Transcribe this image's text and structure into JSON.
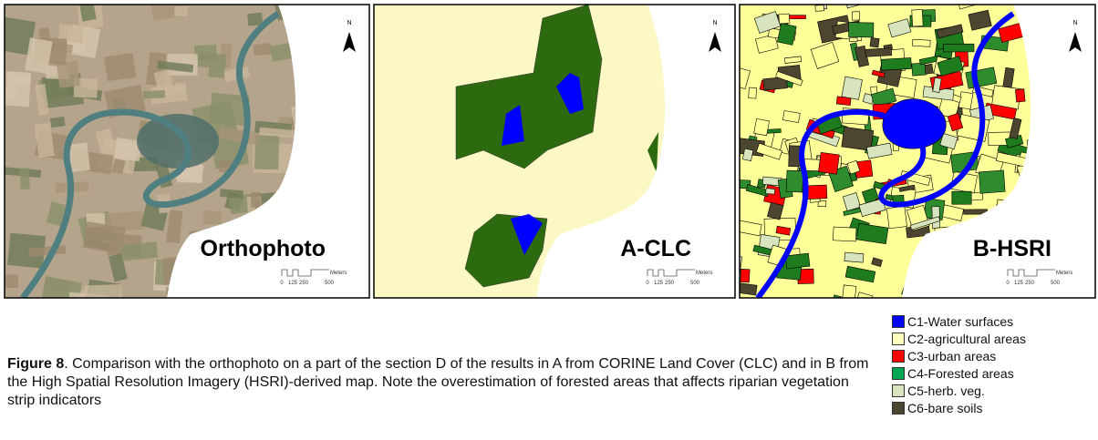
{
  "panels": [
    {
      "label": "Orthophoto",
      "north": "N",
      "scale_ticks": [
        "0",
        "125",
        "250",
        "500"
      ],
      "scale_unit": "Meters"
    },
    {
      "label": "A-CLC",
      "north": "N",
      "scale_ticks": [
        "0",
        "125",
        "250",
        "500"
      ],
      "scale_unit": "Meters"
    },
    {
      "label": "B-HSRI",
      "north": "N",
      "scale_ticks": [
        "0",
        "125",
        "250",
        "500"
      ],
      "scale_unit": "Meters"
    }
  ],
  "caption": {
    "figure": "Figure 8",
    "text": ". Comparison with the orthophoto on a part of the section D of the results in A from CORINE Land Cover (CLC) and in B from the High Spatial Resolution Imagery (HSRI)-derived map. Note the overestimation of forested areas that affects riparian vegetation strip indicators"
  },
  "legend": [
    {
      "label": "C1-Water surfaces",
      "color": "#0000ff"
    },
    {
      "label": "C2-agricultural areas",
      "color": "#ffffbe"
    },
    {
      "label": "C3-urban areas",
      "color": "#ff0000"
    },
    {
      "label": "C4-Forested areas",
      "color": "#00a651"
    },
    {
      "label": "C5-herb. veg.",
      "color": "#d7e4bd"
    },
    {
      "label": "C6-bare soils",
      "color": "#4c4530"
    }
  ]
}
